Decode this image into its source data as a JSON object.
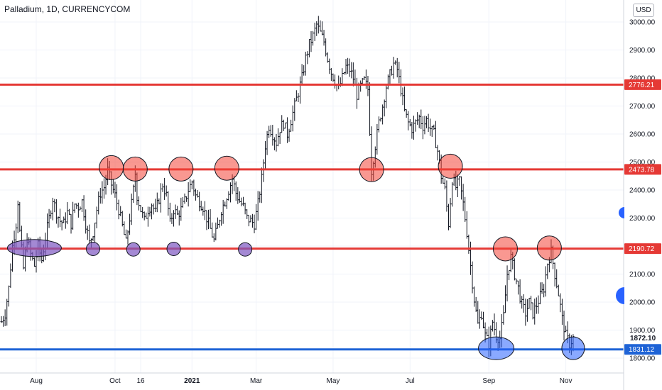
{
  "header": {
    "title": "Palladium, 1D, CURRENCYCOM",
    "currency": "USD"
  },
  "chart_data": {
    "type": "line",
    "ylim": [
      1760,
      3060
    ],
    "y_ticks": [
      "3000.00",
      "2900.00",
      "2800.00",
      "2700.00",
      "2600.00",
      "2500.00",
      "2400.00",
      "2300.00",
      "2200.00",
      "2100.00",
      "2000.00",
      "1900.00",
      "1800.00"
    ],
    "x_ticks": [
      {
        "label": "Aug",
        "i": 19
      },
      {
        "label": "Oct",
        "i": 62
      },
      {
        "label": "16",
        "i": 76
      },
      {
        "label": "2021",
        "i": 104
      },
      {
        "label": "Mar",
        "i": 139
      },
      {
        "label": "May",
        "i": 181
      },
      {
        "label": "Jul",
        "i": 223
      },
      {
        "label": "Sep",
        "i": 266
      },
      {
        "label": "Nov",
        "i": 308
      }
    ],
    "x_range": [
      0,
      338
    ],
    "bold_tick_labels": [
      "2021"
    ],
    "levels": [
      {
        "value": 2776.21,
        "label": "2776.21",
        "color": "#e53935"
      },
      {
        "value": 2473.78,
        "label": "2473.78",
        "color": "#e53935"
      },
      {
        "value": 2190.72,
        "label": "2190.72",
        "color": "#e53935"
      },
      {
        "value": 1831.12,
        "label": "1831.12",
        "color": "#1e63d6"
      }
    ],
    "last_price": {
      "value": 1872.1,
      "label": "1872.10"
    },
    "price_path": [
      [
        0,
        1930
      ],
      [
        2,
        1960
      ],
      [
        4,
        2050
      ],
      [
        6,
        2200
      ],
      [
        8,
        2280
      ],
      [
        9,
        2360
      ],
      [
        10,
        2250
      ],
      [
        12,
        2120
      ],
      [
        14,
        2230
      ],
      [
        16,
        2170
      ],
      [
        18,
        2130
      ],
      [
        20,
        2200
      ],
      [
        22,
        2150
      ],
      [
        24,
        2230
      ],
      [
        26,
        2300
      ],
      [
        28,
        2370
      ],
      [
        30,
        2320
      ],
      [
        32,
        2290
      ],
      [
        34,
        2280
      ],
      [
        36,
        2320
      ],
      [
        38,
        2280
      ],
      [
        40,
        2350
      ],
      [
        42,
        2340
      ],
      [
        44,
        2360
      ],
      [
        46,
        2280
      ],
      [
        48,
        2210
      ],
      [
        50,
        2250
      ],
      [
        52,
        2330
      ],
      [
        54,
        2390
      ],
      [
        56,
        2410
      ],
      [
        58,
        2470
      ],
      [
        60,
        2420
      ],
      [
        62,
        2380
      ],
      [
        64,
        2330
      ],
      [
        66,
        2270
      ],
      [
        68,
        2210
      ],
      [
        70,
        2300
      ],
      [
        72,
        2400
      ],
      [
        73,
        2460
      ],
      [
        74,
        2380
      ],
      [
        76,
        2330
      ],
      [
        78,
        2290
      ],
      [
        80,
        2330
      ],
      [
        82,
        2350
      ],
      [
        84,
        2320
      ],
      [
        86,
        2370
      ],
      [
        88,
        2420
      ],
      [
        90,
        2380
      ],
      [
        92,
        2280
      ],
      [
        94,
        2330
      ],
      [
        96,
        2310
      ],
      [
        98,
        2330
      ],
      [
        100,
        2360
      ],
      [
        102,
        2400
      ],
      [
        104,
        2430
      ],
      [
        106,
        2380
      ],
      [
        108,
        2360
      ],
      [
        110,
        2340
      ],
      [
        112,
        2300
      ],
      [
        114,
        2260
      ],
      [
        116,
        2220
      ],
      [
        118,
        2270
      ],
      [
        120,
        2330
      ],
      [
        122,
        2360
      ],
      [
        124,
        2400
      ],
      [
        126,
        2440
      ],
      [
        128,
        2390
      ],
      [
        130,
        2360
      ],
      [
        132,
        2340
      ],
      [
        134,
        2300
      ],
      [
        136,
        2290
      ],
      [
        138,
        2280
      ],
      [
        140,
        2350
      ],
      [
        142,
        2440
      ],
      [
        144,
        2560
      ],
      [
        146,
        2630
      ],
      [
        148,
        2600
      ],
      [
        150,
        2570
      ],
      [
        152,
        2620
      ],
      [
        154,
        2640
      ],
      [
        156,
        2600
      ],
      [
        158,
        2650
      ],
      [
        160,
        2700
      ],
      [
        162,
        2750
      ],
      [
        164,
        2800
      ],
      [
        166,
        2870
      ],
      [
        168,
        2920
      ],
      [
        170,
        2950
      ],
      [
        172,
        2990
      ],
      [
        174,
        2960
      ],
      [
        176,
        2930
      ],
      [
        178,
        2870
      ],
      [
        180,
        2820
      ],
      [
        182,
        2790
      ],
      [
        184,
        2760
      ],
      [
        186,
        2800
      ],
      [
        188,
        2840
      ],
      [
        190,
        2830
      ],
      [
        192,
        2800
      ],
      [
        194,
        2740
      ],
      [
        196,
        2770
      ],
      [
        198,
        2790
      ],
      [
        200,
        2760
      ],
      [
        202,
        2470
      ],
      [
        204,
        2560
      ],
      [
        206,
        2640
      ],
      [
        208,
        2700
      ],
      [
        210,
        2770
      ],
      [
        212,
        2810
      ],
      [
        214,
        2850
      ],
      [
        216,
        2830
      ],
      [
        218,
        2760
      ],
      [
        220,
        2680
      ],
      [
        222,
        2640
      ],
      [
        224,
        2620
      ],
      [
        226,
        2640
      ],
      [
        228,
        2660
      ],
      [
        230,
        2630
      ],
      [
        232,
        2650
      ],
      [
        234,
        2620
      ],
      [
        236,
        2600
      ],
      [
        238,
        2540
      ],
      [
        240,
        2450
      ],
      [
        242,
        2400
      ],
      [
        244,
        2280
      ],
      [
        246,
        2440
      ],
      [
        248,
        2410
      ],
      [
        250,
        2430
      ],
      [
        252,
        2350
      ],
      [
        254,
        2250
      ],
      [
        256,
        2130
      ],
      [
        258,
        2010
      ],
      [
        260,
        1920
      ],
      [
        262,
        1960
      ],
      [
        264,
        1880
      ],
      [
        266,
        1850
      ],
      [
        268,
        1930
      ],
      [
        270,
        1880
      ],
      [
        272,
        1870
      ],
      [
        274,
        1950
      ],
      [
        276,
        2100
      ],
      [
        278,
        2160
      ],
      [
        280,
        2100
      ],
      [
        282,
        2050
      ],
      [
        284,
        1990
      ],
      [
        286,
        1960
      ],
      [
        288,
        2000
      ],
      [
        290,
        1960
      ],
      [
        292,
        1990
      ],
      [
        294,
        2020
      ],
      [
        296,
        2050
      ],
      [
        298,
        2140
      ],
      [
        300,
        2180
      ],
      [
        302,
        2100
      ],
      [
        304,
        2030
      ],
      [
        306,
        1940
      ],
      [
        308,
        1880
      ],
      [
        310,
        1850
      ],
      [
        312,
        1872
      ]
    ],
    "resistance_markers": [
      {
        "i": 60,
        "value": 2480
      },
      {
        "i": 73,
        "value": 2475
      },
      {
        "i": 98,
        "value": 2475
      },
      {
        "i": 123,
        "value": 2478
      },
      {
        "i": 202,
        "value": 2473
      },
      {
        "i": 245,
        "value": 2485
      },
      {
        "i": 275,
        "value": 2190
      },
      {
        "i": 299,
        "value": 2193
      }
    ],
    "support_markers_purple": [
      {
        "i": 18,
        "value": 2193,
        "wide": true
      },
      {
        "i": 50,
        "value": 2190
      },
      {
        "i": 72,
        "value": 2188
      },
      {
        "i": 94,
        "value": 2190
      },
      {
        "i": 133,
        "value": 2188
      }
    ],
    "support_markers_blue": [
      {
        "i": 270,
        "value": 1835,
        "wide": true
      },
      {
        "i": 312,
        "value": 1835
      }
    ]
  }
}
